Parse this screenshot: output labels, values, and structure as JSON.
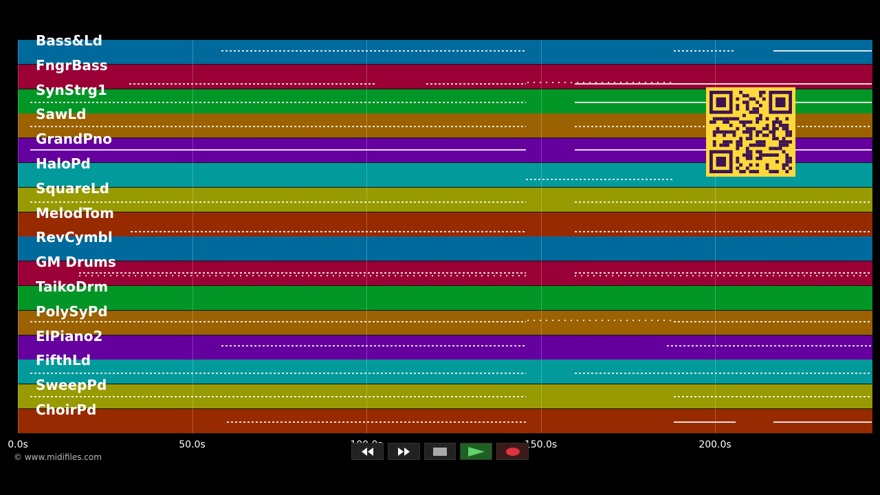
{
  "tracks": [
    {
      "name": "Bass&Ld",
      "color": "#016a9d"
    },
    {
      "name": "FngrBass",
      "color": "#9a0035"
    },
    {
      "name": "SynStrg1",
      "color": "#019626"
    },
    {
      "name": "SawLd",
      "color": "#9c6100"
    },
    {
      "name": "GrandPno",
      "color": "#65009f"
    },
    {
      "name": "HaloPd",
      "color": "#029a9a"
    },
    {
      "name": "SquareLd",
      "color": "#989a01"
    },
    {
      "name": "MelodTom",
      "color": "#982a00"
    },
    {
      "name": "RevCymbl",
      "color": "#016a9d"
    },
    {
      "name": "GM Drums",
      "color": "#9a0035"
    },
    {
      "name": "TaikoDrm",
      "color": "#019626"
    },
    {
      "name": "PolySyPd",
      "color": "#9c6100"
    },
    {
      "name": "ElPiano2",
      "color": "#65009f"
    },
    {
      "name": "FifthLd",
      "color": "#029a9a"
    },
    {
      "name": "SweepPd",
      "color": "#989a01"
    },
    {
      "name": "ChoirPd",
      "color": "#982a00"
    }
  ],
  "timeline": {
    "ticks": [
      "0.0s",
      "50.0s",
      "100.0s",
      "150.0s",
      "200.0s"
    ],
    "tick_values": [
      0,
      50,
      100,
      150,
      200
    ]
  },
  "transport": {
    "rewind_icon": "rewind-icon",
    "forward_icon": "fast-forward-icon",
    "stop_icon": "stop-icon",
    "play_icon": "play-icon",
    "record_icon": "record-icon"
  },
  "footer": {
    "credit": "© www.midifiles.com"
  },
  "overlay": {
    "qr_icon": "qr-code-icon",
    "qr_color": "#ffd93b",
    "qr_fg": "#3d1452"
  }
}
